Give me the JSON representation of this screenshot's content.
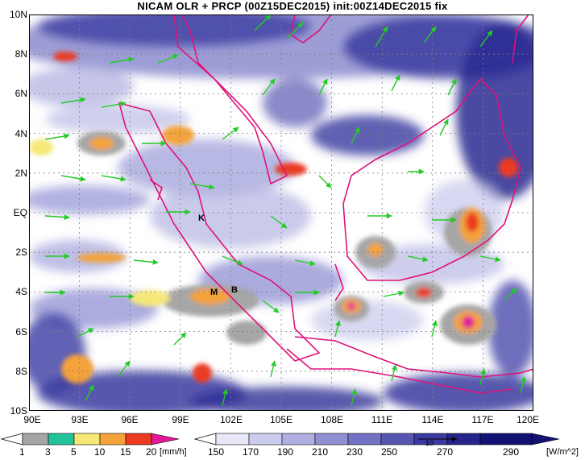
{
  "title": "NICAM OLR + PRCP (00Z15DEC2015) init:00Z14DEC2015 fix",
  "axes": {
    "y_labels": [
      "10N",
      "8N",
      "6N",
      "4N",
      "2N",
      "EQ",
      "2S",
      "4S",
      "6S",
      "8S",
      "10S"
    ],
    "x_labels": [
      "90E",
      "93E",
      "96E",
      "99E",
      "102E",
      "105E",
      "108E",
      "111E",
      "114E",
      "117E",
      "120E"
    ]
  },
  "markers": [
    {
      "label": "K"
    },
    {
      "label": "M"
    },
    {
      "label": "B"
    }
  ],
  "precip_colorbar": {
    "ticks": [
      "1",
      "3",
      "5",
      "10",
      "15",
      "20"
    ],
    "unit": "[mm/h]",
    "colors": [
      "#a6a6a6",
      "#22c39a",
      "#f5e878",
      "#f4a23a",
      "#ec3a22",
      "#e21a96"
    ]
  },
  "olr_colorbar": {
    "ticks": [
      "150",
      "170",
      "190",
      "210",
      "230",
      "250",
      "270",
      "290"
    ],
    "unit": "[W/m^2]",
    "colors": [
      "#ffffff",
      "#e8e8f8",
      "#ccccee",
      "#aeaee0",
      "#8f8fd2",
      "#7272c4",
      "#5656b2",
      "#3a3aa0",
      "#24248a",
      "#121274"
    ]
  },
  "wind_scale_label": "10",
  "colors": {
    "coastline": "#e0127a",
    "wind_vectors": "#22cc22",
    "grid": "#808080"
  }
}
